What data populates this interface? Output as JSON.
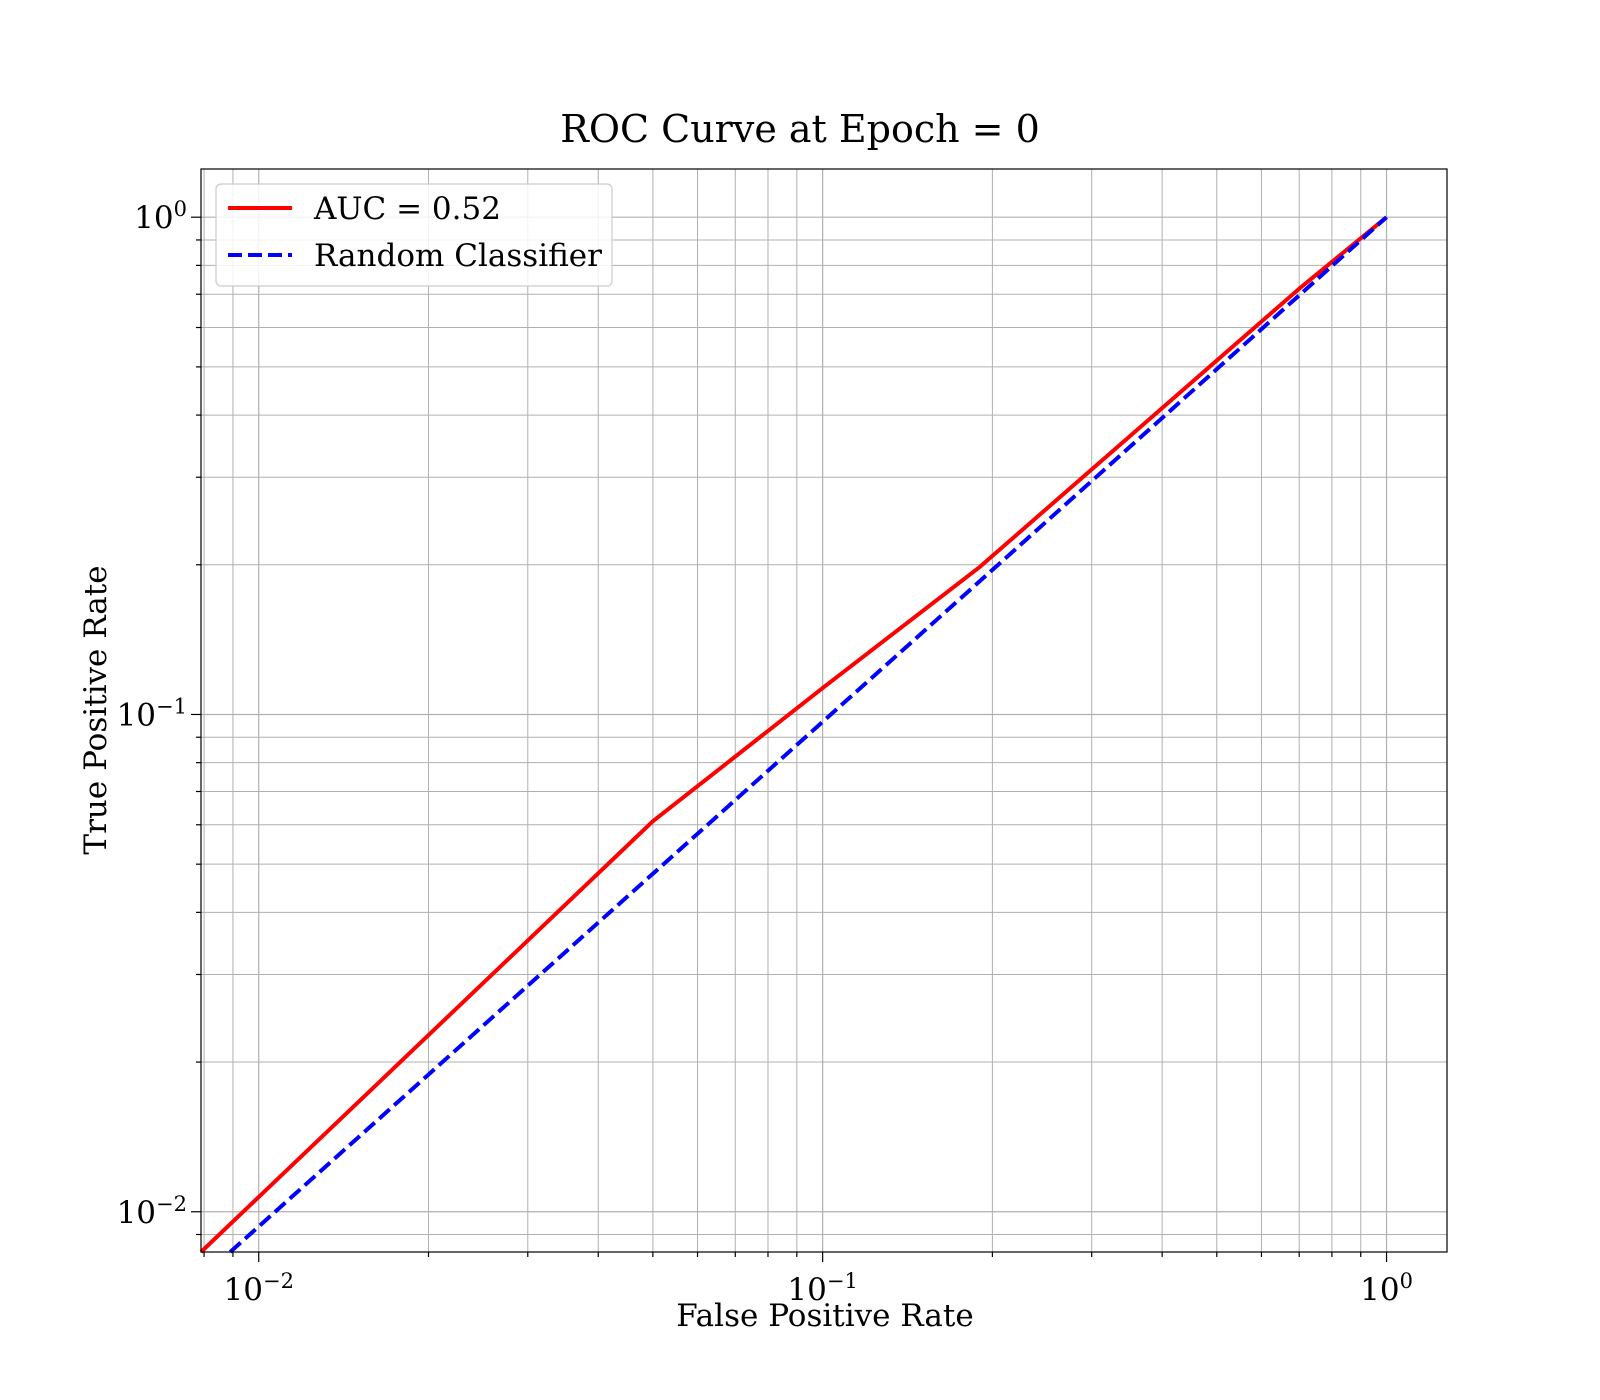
{
  "chart_data": {
    "type": "line",
    "title": "ROC Curve at Epoch = 0",
    "xlabel": "False Positive Rate",
    "ylabel": "True Positive Rate",
    "xscale": "log",
    "yscale": "log",
    "xlim": [
      0.0079,
      1.28
    ],
    "ylim": [
      0.0083,
      1.25
    ],
    "grid": true,
    "grid_minor": true,
    "legend_position": "top-left",
    "x_ticks": [
      {
        "value": 0.01,
        "base": "10",
        "exp": "−2"
      },
      {
        "value": 0.1,
        "base": "10",
        "exp": "−1"
      },
      {
        "value": 1,
        "base": "10",
        "exp": "0"
      }
    ],
    "y_ticks": [
      {
        "value": 0.01,
        "base": "10",
        "exp": "−2"
      },
      {
        "value": 0.1,
        "base": "10",
        "exp": "−1"
      },
      {
        "value": 1,
        "base": "10",
        "exp": "0"
      }
    ],
    "series": [
      {
        "name": "AUC = 0.52",
        "color": "#ff0000",
        "style": "solid",
        "x": [
          0.0079,
          0.05,
          0.1,
          0.19,
          0.7,
          1.0
        ],
        "y": [
          0.0083,
          0.061,
          0.113,
          0.198,
          0.718,
          1.0
        ]
      },
      {
        "name": "Random Classifier",
        "color": "#0000ff",
        "style": "dashed",
        "x": [
          0.0089,
          1.0
        ],
        "y": [
          0.0083,
          1.0
        ]
      }
    ]
  }
}
